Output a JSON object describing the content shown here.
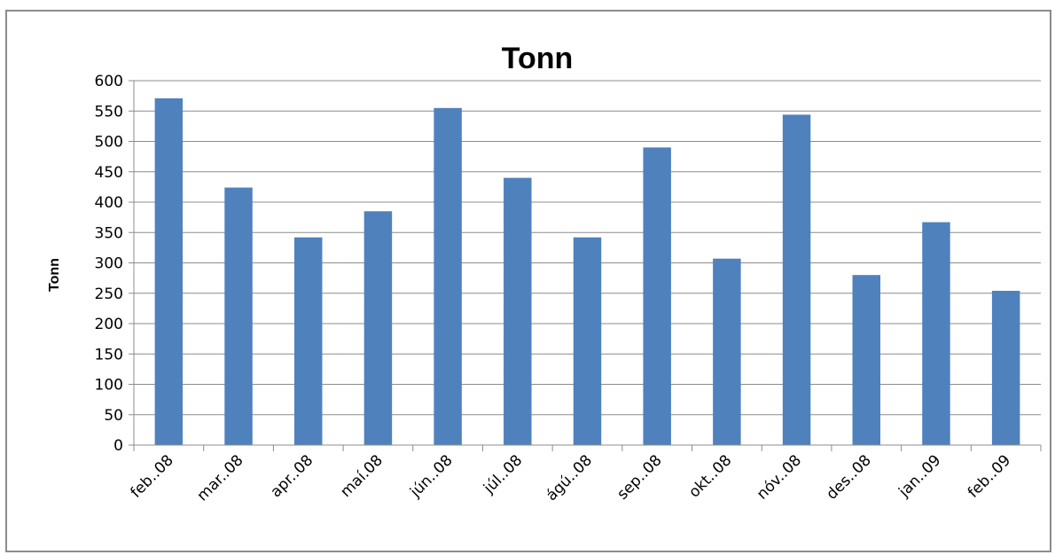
{
  "chart_data": {
    "type": "bar",
    "title": "Tonn",
    "xlabel": "",
    "ylabel": "Tonn",
    "ylim": [
      0,
      600
    ],
    "ytick_step": 50,
    "grid": true,
    "legend": "none",
    "categories": [
      "feb..08",
      "mar..08",
      "apr..08",
      "maí.08",
      "jún..08",
      "júl..08",
      "ágú..08",
      "sep..08",
      "okt..08",
      "nóv..08",
      "des..08",
      "jan..09",
      "feb..09"
    ],
    "values": [
      571,
      424,
      342,
      385,
      555,
      440,
      342,
      490,
      307,
      544,
      280,
      367,
      254
    ],
    "colors": {
      "bar": "#4f81bd",
      "grid": "#8c8c8c",
      "axis": "#8c8c8c",
      "frame": "#8c8c8c"
    }
  }
}
